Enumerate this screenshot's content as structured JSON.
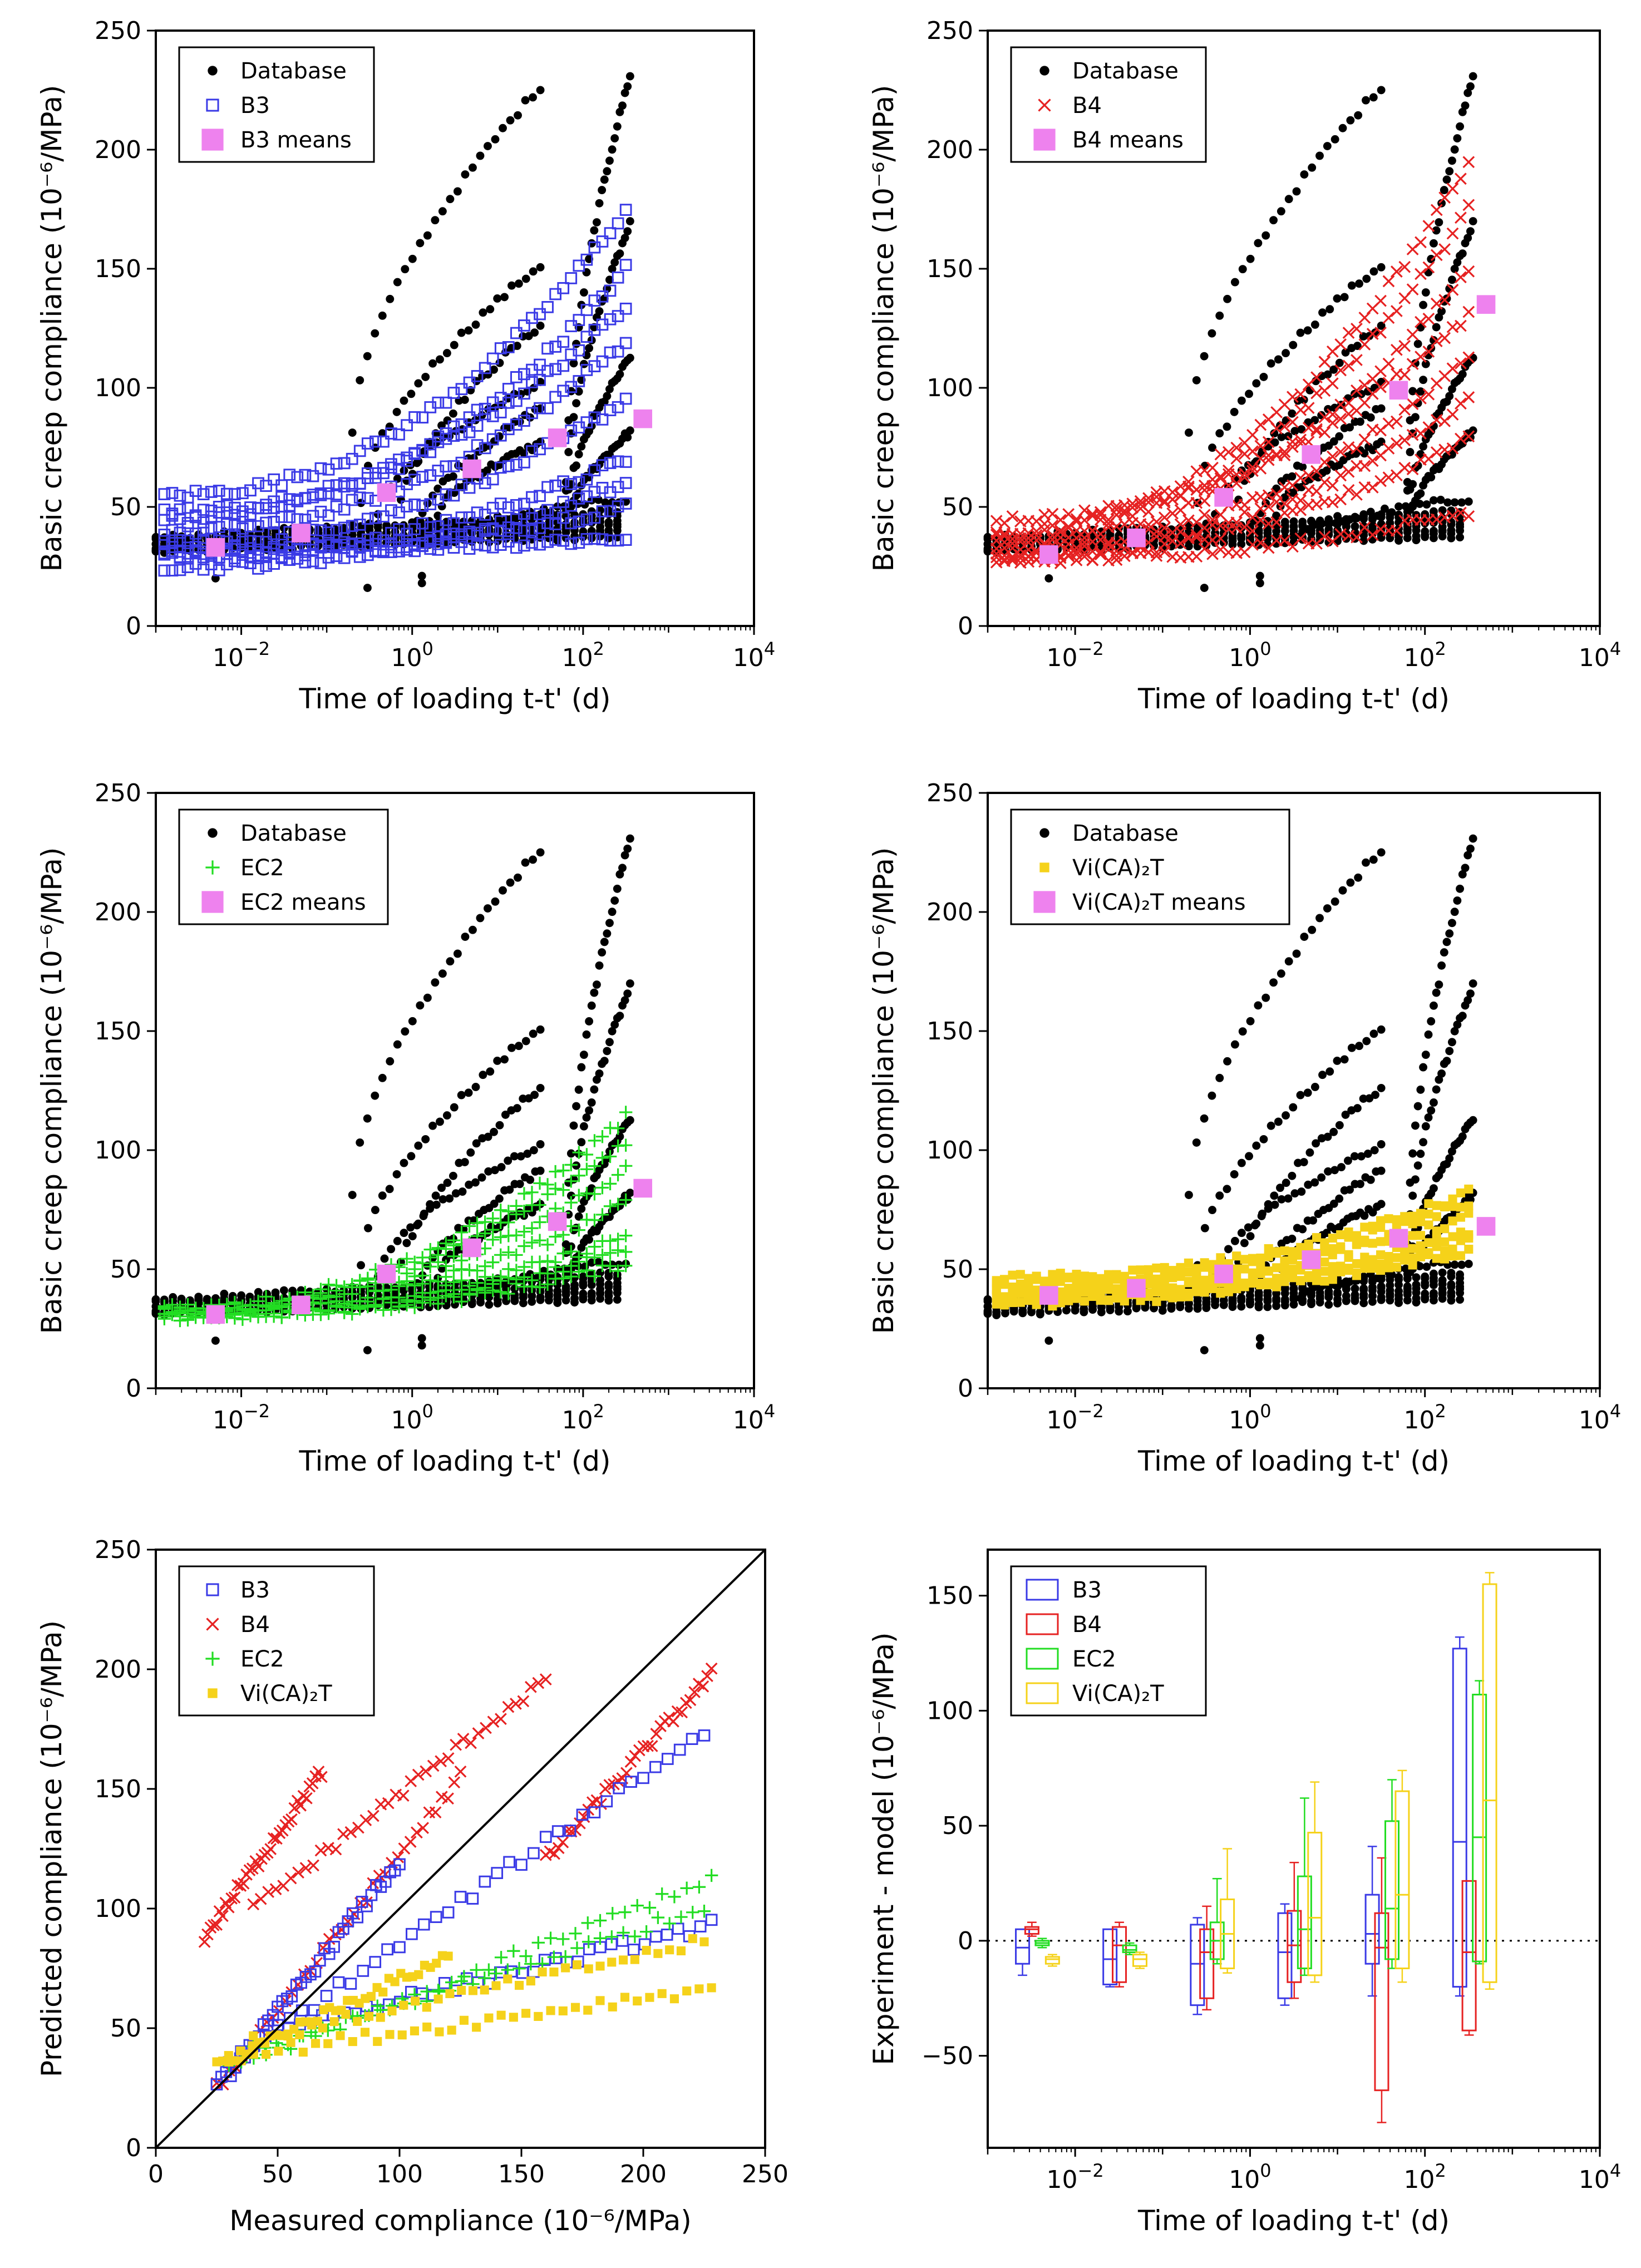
{
  "colors": {
    "database": "#000000",
    "b3": "#3a3ae6",
    "b4": "#e62222",
    "ec2": "#22dd22",
    "vica2t": "#f5d21a",
    "means": "#ee82ee"
  },
  "chart_data": [
    {
      "type": "scatter",
      "id": "b3",
      "xscale": "log",
      "xlim": [
        0.001,
        10000
      ],
      "ylim": [
        0,
        250
      ],
      "xlabel": "Time of loading t-t' (d)",
      "ylabel": "Basic creep compliance (10⁻⁶/MPa)",
      "xticks": [
        "10^-2",
        "10^0",
        "10^2",
        "10^4"
      ],
      "yticks": [
        0,
        50,
        100,
        150,
        200,
        250
      ],
      "legend": [
        {
          "label": "Database",
          "marker": "dot",
          "color": "#000000"
        },
        {
          "label": "B3",
          "marker": "square-open",
          "color": "#3a3ae6"
        },
        {
          "label": "B3 means",
          "marker": "square",
          "color": "#ee82ee"
        }
      ],
      "means": {
        "x": [
          0.005,
          0.05,
          0.5,
          5,
          50,
          500
        ],
        "y": [
          33,
          39,
          56,
          66,
          79,
          87
        ]
      },
      "model_endpoints": [
        [
          32,
          37
        ],
        [
          30,
          50
        ],
        [
          30,
          70
        ],
        [
          35,
          95
        ],
        [
          40,
          120
        ],
        [
          45,
          150
        ],
        [
          55,
          175
        ],
        [
          48,
          135
        ],
        [
          25,
          60
        ]
      ]
    },
    {
      "type": "scatter",
      "id": "b4",
      "xscale": "log",
      "xlim": [
        0.001,
        10000
      ],
      "ylim": [
        0,
        250
      ],
      "xlabel": "Time of loading t-t' (d)",
      "ylabel": "Basic creep compliance (10⁻⁶/MPa)",
      "xticks": [
        "10^-2",
        "10^0",
        "10^2",
        "10^4"
      ],
      "yticks": [
        0,
        50,
        100,
        150,
        200,
        250
      ],
      "legend": [
        {
          "label": "Database",
          "marker": "dot",
          "color": "#000000"
        },
        {
          "label": "B4",
          "marker": "x",
          "color": "#e62222"
        },
        {
          "label": "B4 means",
          "marker": "square",
          "color": "#ee82ee"
        }
      ],
      "means": {
        "x": [
          0.005,
          0.05,
          0.5,
          5,
          50,
          500
        ],
        "y": [
          30,
          37,
          54,
          72,
          99,
          135
        ]
      },
      "model_endpoints": [
        [
          28,
          48
        ],
        [
          28,
          80
        ],
        [
          30,
          95
        ],
        [
          32,
          112
        ],
        [
          35,
          150
        ],
        [
          38,
          175
        ],
        [
          40,
          195
        ],
        [
          45,
          130
        ]
      ]
    },
    {
      "type": "scatter",
      "id": "ec2",
      "xscale": "log",
      "xlim": [
        0.001,
        10000
      ],
      "ylim": [
        0,
        250
      ],
      "xlabel": "Time of loading t-t' (d)",
      "ylabel": "Basic creep compliance (10⁻⁶/MPa)",
      "xticks": [
        "10^-2",
        "10^0",
        "10^2",
        "10^4"
      ],
      "yticks": [
        0,
        50,
        100,
        150,
        200,
        250
      ],
      "legend": [
        {
          "label": "Database",
          "marker": "dot",
          "color": "#000000"
        },
        {
          "label": "EC2",
          "marker": "plus",
          "color": "#22dd22"
        },
        {
          "label": "EC2 means",
          "marker": "square",
          "color": "#ee82ee"
        }
      ],
      "means": {
        "x": [
          0.005,
          0.05,
          0.5,
          5,
          50,
          500
        ],
        "y": [
          31,
          35,
          48,
          59,
          70,
          84
        ]
      },
      "model_endpoints": [
        [
          30,
          52
        ],
        [
          31,
          64
        ],
        [
          31,
          78
        ],
        [
          32,
          92
        ],
        [
          33,
          104
        ],
        [
          34,
          114
        ],
        [
          30,
          58
        ]
      ]
    },
    {
      "type": "scatter",
      "id": "vica2t",
      "xscale": "log",
      "xlim": [
        0.001,
        10000
      ],
      "ylim": [
        0,
        250
      ],
      "xlabel": "Time of loading t-t' (d)",
      "ylabel": "Basic creep compliance (10⁻⁶/MPa)",
      "xticks": [
        "10^-2",
        "10^0",
        "10^2",
        "10^4"
      ],
      "yticks": [
        0,
        50,
        100,
        150,
        200,
        250
      ],
      "legend": [
        {
          "label": "Database",
          "marker": "dot",
          "color": "#000000"
        },
        {
          "label": "Vi(CA)₂T",
          "marker": "square-small",
          "color": "#f5d21a"
        },
        {
          "label": "Vi(CA)₂T means",
          "marker": "square",
          "color": "#ee82ee"
        }
      ],
      "means": {
        "x": [
          0.005,
          0.05,
          0.5,
          5,
          50,
          500
        ],
        "y": [
          39,
          42,
          48,
          54,
          63,
          68
        ]
      },
      "model_endpoints": [
        [
          38,
          58
        ],
        [
          40,
          65
        ],
        [
          42,
          72
        ],
        [
          44,
          78
        ],
        [
          46,
          82
        ],
        [
          36,
          62
        ]
      ]
    },
    {
      "type": "scatter",
      "id": "predicted-vs-measured",
      "xscale": "linear",
      "xlim": [
        0,
        250
      ],
      "ylim": [
        0,
        250
      ],
      "xlabel": "Measured compliance (10⁻⁶/MPa)",
      "ylabel": "Predicted compliance (10⁻⁶/MPa)",
      "xticks": [
        0,
        50,
        100,
        150,
        200,
        250
      ],
      "yticks": [
        0,
        50,
        100,
        150,
        200,
        250
      ],
      "legend": [
        {
          "label": "B3",
          "marker": "square-open",
          "color": "#3a3ae6"
        },
        {
          "label": "B4",
          "marker": "x",
          "color": "#e62222"
        },
        {
          "label": "EC2",
          "marker": "plus",
          "color": "#22dd22"
        },
        {
          "label": "Vi(CA)₂T",
          "marker": "square-small",
          "color": "#f5d21a"
        }
      ],
      "identity_line": [
        [
          0,
          0
        ],
        [
          250,
          250
        ]
      ],
      "branches": [
        {
          "series": "b4",
          "from": [
            20,
            88
          ],
          "to": [
            68,
            157
          ]
        },
        {
          "series": "b4",
          "from": [
            40,
            100
          ],
          "to": [
            160,
            196
          ]
        },
        {
          "series": "b4",
          "from": [
            160,
            120
          ],
          "to": [
            228,
            198
          ]
        },
        {
          "series": "b4",
          "from": [
            25,
            25
          ],
          "to": [
            125,
            155
          ]
        },
        {
          "series": "b3",
          "from": [
            30,
            35
          ],
          "to": [
            225,
            174
          ]
        },
        {
          "series": "b3",
          "from": [
            50,
            50
          ],
          "to": [
            228,
            93
          ]
        },
        {
          "series": "b3",
          "from": [
            25,
            25
          ],
          "to": [
            100,
            120
          ]
        },
        {
          "series": "ec2",
          "from": [
            30,
            32
          ],
          "to": [
            228,
            113
          ]
        },
        {
          "series": "ec2",
          "from": [
            40,
            40
          ],
          "to": [
            225,
            100
          ]
        },
        {
          "series": "vica2t",
          "from": [
            30,
            38
          ],
          "to": [
            228,
            67
          ]
        },
        {
          "series": "vica2t",
          "from": [
            40,
            45
          ],
          "to": [
            225,
            86
          ]
        },
        {
          "series": "vica2t",
          "from": [
            25,
            35
          ],
          "to": [
            120,
            80
          ]
        }
      ]
    },
    {
      "type": "box",
      "id": "residuals",
      "xscale": "log",
      "xlim": [
        0.001,
        10000
      ],
      "ylim": [
        -90,
        170
      ],
      "xlabel": "Time of loading t-t' (d)",
      "ylabel": "Experiment - model (10⁻⁶/MPa)",
      "xticks": [
        "10^-2",
        "10^0",
        "10^2",
        "10^4"
      ],
      "yticks": [
        -50,
        0,
        50,
        100,
        150
      ],
      "reference_line": 0,
      "legend": [
        {
          "label": "B3",
          "color": "#3a3ae6"
        },
        {
          "label": "B4",
          "color": "#e62222"
        },
        {
          "label": "EC2",
          "color": "#22dd22"
        },
        {
          "label": "Vi(CA)₂T",
          "color": "#f5d21a"
        }
      ],
      "boxes": [
        {
          "series": "b3",
          "x": 0.0025,
          "whisker_low": -15,
          "q1": -10,
          "median": -3,
          "q3": 5,
          "whisker_high": 5
        },
        {
          "series": "b4",
          "x": 0.0032,
          "whisker_low": 2,
          "q1": 3,
          "median": 5,
          "q3": 6,
          "whisker_high": 8
        },
        {
          "series": "ec2",
          "x": 0.0042,
          "whisker_low": -3,
          "q1": -2,
          "median": -1,
          "q3": 0,
          "whisker_high": 1
        },
        {
          "series": "vica2t",
          "x": 0.0055,
          "whisker_low": -11,
          "q1": -10,
          "median": -8,
          "q3": -7,
          "whisker_high": -6
        },
        {
          "series": "b3",
          "x": 0.025,
          "whisker_low": -20,
          "q1": -19,
          "median": -8,
          "q3": 5,
          "whisker_high": 5
        },
        {
          "series": "b4",
          "x": 0.032,
          "whisker_low": -20,
          "q1": -18,
          "median": -2,
          "q3": 6,
          "whisker_high": 8
        },
        {
          "series": "ec2",
          "x": 0.042,
          "whisker_low": -6,
          "q1": -5,
          "median": -4,
          "q3": -2,
          "whisker_high": -1
        },
        {
          "series": "vica2t",
          "x": 0.055,
          "whisker_low": -12,
          "q1": -11,
          "median": -8,
          "q3": -6,
          "whisker_high": -5
        },
        {
          "series": "b3",
          "x": 0.25,
          "whisker_low": -32,
          "q1": -28,
          "median": -10,
          "q3": 7,
          "whisker_high": 10
        },
        {
          "series": "b4",
          "x": 0.32,
          "whisker_low": -30,
          "q1": -25,
          "median": -5,
          "q3": 5,
          "whisker_high": 15
        },
        {
          "series": "ec2",
          "x": 0.42,
          "whisker_low": -10,
          "q1": -8,
          "median": 0,
          "q3": 8,
          "whisker_high": 27
        },
        {
          "series": "vica2t",
          "x": 0.55,
          "whisker_low": -14,
          "q1": -12,
          "median": 3,
          "q3": 18,
          "whisker_high": 40
        },
        {
          "series": "b3",
          "x": 2.5,
          "whisker_low": -28,
          "q1": -25,
          "median": -5,
          "q3": 12,
          "whisker_high": 16
        },
        {
          "series": "b4",
          "x": 3.2,
          "whisker_low": -25,
          "q1": -18,
          "median": -2,
          "q3": 13,
          "whisker_high": 34
        },
        {
          "series": "ec2",
          "x": 4.2,
          "whisker_low": -15,
          "q1": -12,
          "median": 5,
          "q3": 28,
          "whisker_high": 62
        },
        {
          "series": "vica2t",
          "x": 5.5,
          "whisker_low": -18,
          "q1": -15,
          "median": 10,
          "q3": 47,
          "whisker_high": 69
        },
        {
          "series": "b3",
          "x": 25,
          "whisker_low": -24,
          "q1": -10,
          "median": 3,
          "q3": 20,
          "whisker_high": 41
        },
        {
          "series": "b4",
          "x": 32,
          "whisker_low": -79,
          "q1": -65,
          "median": -3,
          "q3": 12,
          "whisker_high": 36
        },
        {
          "series": "ec2",
          "x": 42,
          "whisker_low": -12,
          "q1": -8,
          "median": 14,
          "q3": 52,
          "whisker_high": 70
        },
        {
          "series": "vica2t",
          "x": 55,
          "whisker_low": -18,
          "q1": -12,
          "median": 20,
          "q3": 65,
          "whisker_high": 74
        },
        {
          "series": "b3",
          "x": 250,
          "whisker_low": -24,
          "q1": -20,
          "median": 43,
          "q3": 127,
          "whisker_high": 132
        },
        {
          "series": "b4",
          "x": 320,
          "whisker_low": -41,
          "q1": -39,
          "median": -5,
          "q3": 26,
          "whisker_high": 26
        },
        {
          "series": "ec2",
          "x": 420,
          "whisker_low": -10,
          "q1": -9,
          "median": 45,
          "q3": 107,
          "whisker_high": 113
        },
        {
          "series": "vica2t",
          "x": 550,
          "whisker_low": -21,
          "q1": -18,
          "median": 61,
          "q3": 155,
          "whisker_high": 160
        }
      ]
    }
  ]
}
